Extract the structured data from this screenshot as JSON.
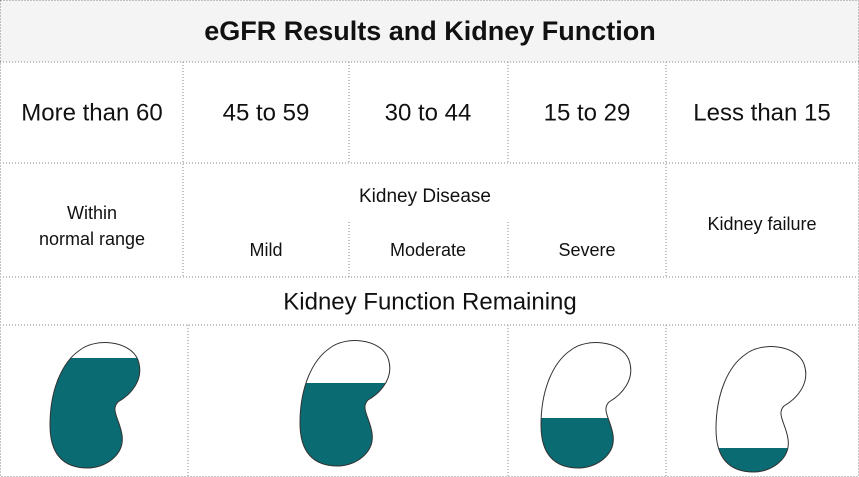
{
  "header": {
    "title": "eGFR Results and Kidney Function"
  },
  "ranges": [
    "More than 60",
    "45 to 59",
    "30 to 44",
    "15 to 29",
    "Less than 15"
  ],
  "stages": {
    "normal": [
      "Within",
      "normal range"
    ],
    "disease": "Kidney Disease",
    "mild": "Mild",
    "moderate": "Moderate",
    "severe": "Severe",
    "failure": "Kidney failure"
  },
  "remaining": {
    "title": "Kidney Function Remaining"
  }
}
